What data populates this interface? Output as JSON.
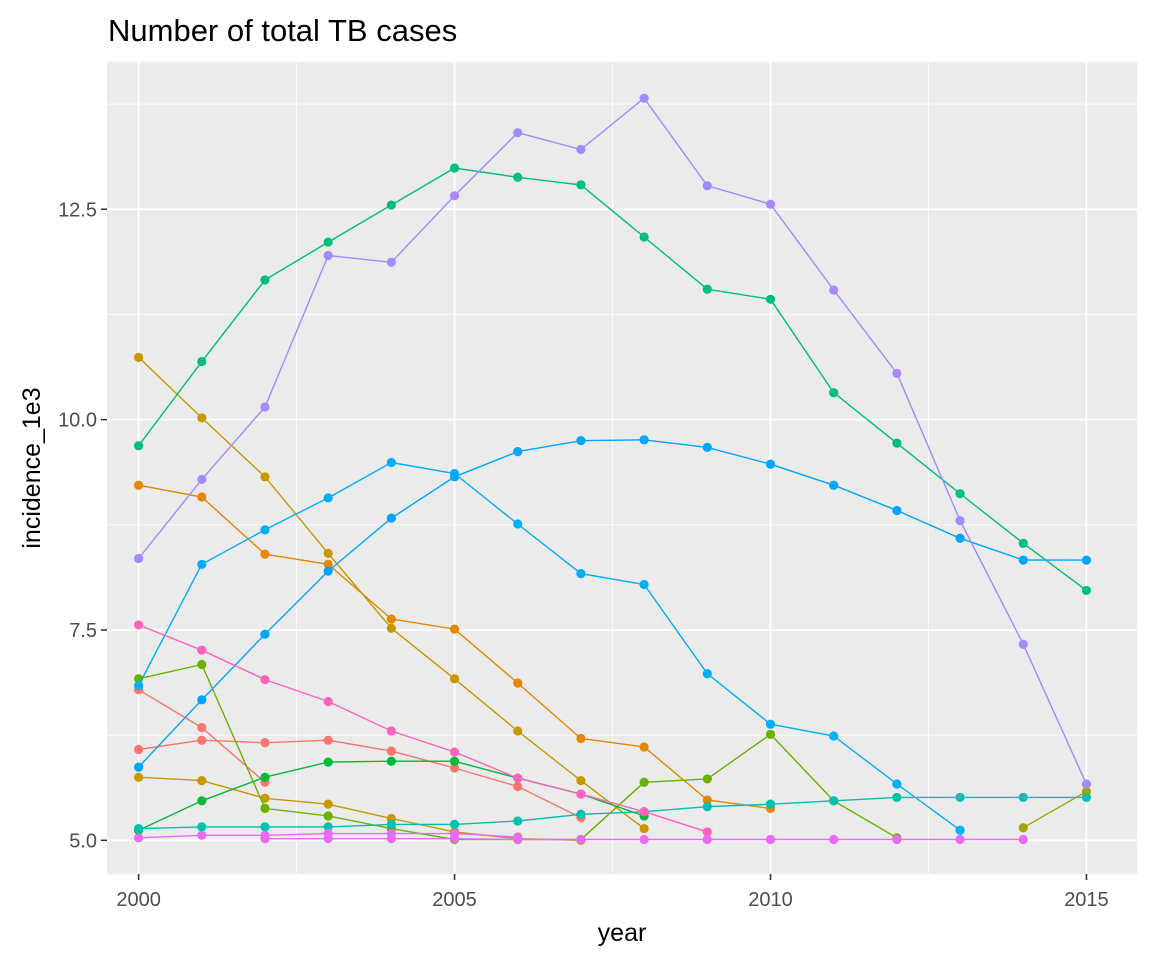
{
  "chart_data": {
    "type": "line",
    "title": "Number of total TB cases",
    "xlabel": "year",
    "ylabel": "incidence_1e3",
    "xlim": [
      1999.5,
      2015.8
    ],
    "ylim": [
      4.6,
      14.25
    ],
    "x_ticks": [
      2000,
      2005,
      2010,
      2015
    ],
    "x_tick_labels": [
      "2000",
      "2005",
      "2010",
      "2015"
    ],
    "x_minor_ticks": [
      2002.5,
      2007.5,
      2012.5
    ],
    "y_ticks": [
      5.0,
      7.5,
      10.0,
      12.5
    ],
    "y_tick_labels": [
      "5.0",
      "7.5",
      "10.0",
      "12.5"
    ],
    "y_minor_ticks": [
      6.25,
      8.75,
      11.25,
      13.75
    ],
    "grid": true,
    "legend": "none",
    "panel_background": "#EBEBEB",
    "grid_color": "#FFFFFF",
    "series": [
      {
        "color": "#F8766D",
        "points": [
          [
            2000,
            6.79
          ],
          [
            2001,
            6.34
          ],
          [
            2002,
            5.69
          ]
        ]
      },
      {
        "color": "#F8766D",
        "points": [
          [
            2000,
            6.08
          ],
          [
            2001,
            6.19
          ],
          [
            2002,
            6.16
          ],
          [
            2003,
            6.19
          ],
          [
            2004,
            6.06
          ],
          [
            2005,
            5.86
          ],
          [
            2006,
            5.64
          ],
          [
            2007,
            5.27
          ]
        ]
      },
      {
        "color": "#E58700",
        "points": [
          [
            2000,
            9.22
          ],
          [
            2001,
            9.08
          ],
          [
            2002,
            8.4
          ],
          [
            2003,
            8.28
          ],
          [
            2004,
            7.63
          ],
          [
            2005,
            7.51
          ],
          [
            2006,
            6.87
          ],
          [
            2007,
            6.21
          ],
          [
            2008,
            6.11
          ],
          [
            2009,
            5.48
          ],
          [
            2010,
            5.38
          ]
        ]
      },
      {
        "color": "#C99800",
        "points": [
          [
            2000,
            10.74
          ],
          [
            2001,
            10.02
          ],
          [
            2002,
            9.32
          ],
          [
            2003,
            8.41
          ],
          [
            2004,
            7.52
          ],
          [
            2005,
            6.92
          ],
          [
            2006,
            6.3
          ],
          [
            2007,
            5.71
          ],
          [
            2008,
            5.14
          ]
        ]
      },
      {
        "color": "#C99800",
        "points": [
          [
            2000,
            5.75
          ],
          [
            2001,
            5.71
          ],
          [
            2002,
            5.5
          ],
          [
            2003,
            5.43
          ],
          [
            2004,
            5.26
          ],
          [
            2005,
            5.1
          ],
          [
            2006,
            5.02
          ],
          [
            2007,
            5.0
          ]
        ]
      },
      {
        "color": "#A3A500",
        "points": [
          [
            2014,
            5.15
          ],
          [
            2015,
            5.58
          ]
        ]
      },
      {
        "color": "#6BB100",
        "points": [
          [
            2000,
            6.92
          ],
          [
            2001,
            7.09
          ],
          [
            2002,
            5.38
          ],
          [
            2003,
            5.29
          ],
          [
            2004,
            5.14
          ],
          [
            2005,
            5.01
          ],
          [
            2006,
            5.01
          ],
          [
            2007,
            5.01
          ],
          [
            2008,
            5.69
          ],
          [
            2009,
            5.73
          ],
          [
            2010,
            6.26
          ],
          [
            2011,
            5.47
          ],
          [
            2012,
            5.03
          ]
        ]
      },
      {
        "color": "#00BA38",
        "points": [
          [
            2000,
            5.12
          ],
          [
            2001,
            5.47
          ],
          [
            2002,
            5.75
          ],
          [
            2003,
            5.93
          ],
          [
            2004,
            5.94
          ],
          [
            2005,
            5.94
          ],
          [
            2006,
            5.74
          ],
          [
            2007,
            5.55
          ],
          [
            2008,
            5.29
          ]
        ]
      },
      {
        "color": "#00BF7D",
        "points": [
          [
            2000,
            9.69
          ],
          [
            2001,
            10.69
          ],
          [
            2002,
            11.66
          ],
          [
            2003,
            12.11
          ],
          [
            2004,
            12.55
          ],
          [
            2005,
            12.99
          ],
          [
            2006,
            12.88
          ],
          [
            2007,
            12.79
          ],
          [
            2008,
            12.17
          ],
          [
            2009,
            11.55
          ],
          [
            2010,
            11.43
          ],
          [
            2011,
            10.32
          ],
          [
            2012,
            9.72
          ],
          [
            2013,
            9.12
          ],
          [
            2014,
            8.53
          ],
          [
            2015,
            7.97
          ]
        ]
      },
      {
        "color": "#00C0AF",
        "points": [
          [
            2000,
            5.14
          ],
          [
            2001,
            5.16
          ],
          [
            2002,
            5.16
          ],
          [
            2003,
            5.16
          ],
          [
            2004,
            5.19
          ],
          [
            2005,
            5.19
          ],
          [
            2006,
            5.23
          ],
          [
            2007,
            5.31
          ],
          [
            2008,
            5.34
          ],
          [
            2009,
            5.4
          ],
          [
            2010,
            5.43
          ],
          [
            2011,
            5.47
          ],
          [
            2012,
            5.51
          ],
          [
            2013,
            5.51
          ],
          [
            2014,
            5.51
          ],
          [
            2015,
            5.51
          ]
        ]
      },
      {
        "color": "#00B0F6",
        "points": [
          [
            2000,
            6.84
          ],
          [
            2001,
            8.28
          ],
          [
            2002,
            8.69
          ],
          [
            2003,
            9.07
          ],
          [
            2004,
            9.49
          ],
          [
            2005,
            9.36
          ],
          [
            2006,
            8.76
          ],
          [
            2007,
            8.17
          ],
          [
            2008,
            8.04
          ],
          [
            2009,
            6.98
          ],
          [
            2010,
            6.38
          ],
          [
            2011,
            6.24
          ],
          [
            2012,
            5.67
          ],
          [
            2013,
            5.12
          ]
        ]
      },
      {
        "color": "#00A5FF",
        "points": [
          [
            2000,
            5.87
          ],
          [
            2001,
            6.67
          ],
          [
            2002,
            7.45
          ],
          [
            2003,
            8.2
          ],
          [
            2004,
            8.83
          ],
          [
            2005,
            9.32
          ],
          [
            2006,
            9.62
          ],
          [
            2007,
            9.75
          ],
          [
            2008,
            9.76
          ],
          [
            2009,
            9.67
          ],
          [
            2010,
            9.47
          ],
          [
            2011,
            9.22
          ],
          [
            2012,
            8.92
          ],
          [
            2013,
            8.59
          ],
          [
            2014,
            8.33
          ],
          [
            2015,
            8.33
          ]
        ]
      },
      {
        "color": "#A58AFF",
        "points": [
          [
            2000,
            8.35
          ],
          [
            2001,
            9.29
          ],
          [
            2002,
            10.15
          ],
          [
            2003,
            11.95
          ],
          [
            2004,
            11.87
          ],
          [
            2005,
            12.66
          ],
          [
            2006,
            13.41
          ],
          [
            2007,
            13.21
          ],
          [
            2008,
            13.82
          ],
          [
            2009,
            12.78
          ],
          [
            2010,
            12.56
          ],
          [
            2011,
            11.54
          ],
          [
            2012,
            10.55
          ],
          [
            2013,
            8.8
          ],
          [
            2014,
            7.33
          ],
          [
            2015,
            5.67
          ]
        ]
      },
      {
        "color": "#E76BF3",
        "points": [
          [
            2000,
            5.03
          ],
          [
            2001,
            5.06
          ],
          [
            2002,
            5.06
          ],
          [
            2003,
            5.08
          ],
          [
            2004,
            5.08
          ],
          [
            2005,
            5.08
          ],
          [
            2006,
            5.04
          ]
        ]
      },
      {
        "color": "#E76BF3",
        "points": [
          [
            2002,
            5.02
          ],
          [
            2003,
            5.02
          ],
          [
            2004,
            5.02
          ],
          [
            2005,
            5.02
          ],
          [
            2006,
            5.01
          ],
          [
            2007,
            5.01
          ],
          [
            2008,
            5.01
          ],
          [
            2009,
            5.01
          ],
          [
            2010,
            5.01
          ],
          [
            2011,
            5.01
          ],
          [
            2012,
            5.01
          ],
          [
            2013,
            5.01
          ],
          [
            2014,
            5.01
          ]
        ]
      },
      {
        "color": "#FF62BC",
        "points": [
          [
            2000,
            7.56
          ],
          [
            2001,
            7.26
          ],
          [
            2002,
            6.91
          ],
          [
            2003,
            6.65
          ],
          [
            2004,
            6.3
          ],
          [
            2005,
            6.05
          ],
          [
            2006,
            5.74
          ],
          [
            2007,
            5.55
          ],
          [
            2008,
            5.34
          ],
          [
            2009,
            5.1
          ]
        ]
      }
    ]
  }
}
